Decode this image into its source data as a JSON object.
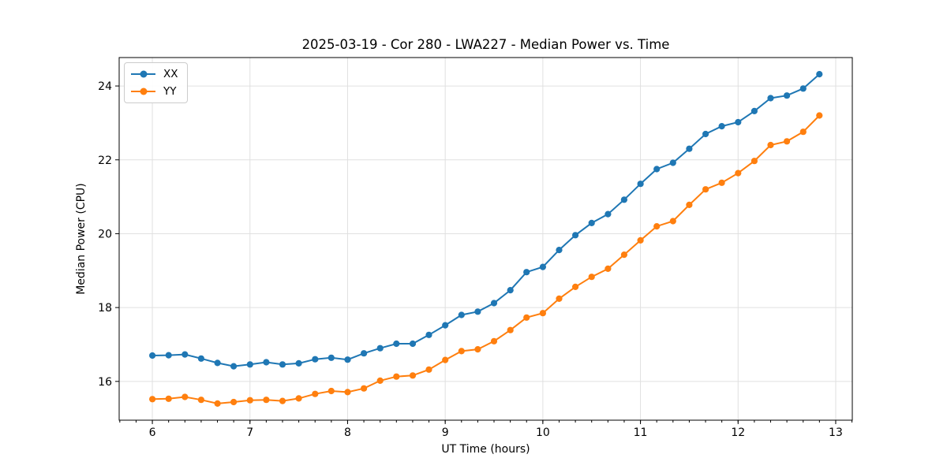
{
  "chart_data": {
    "type": "line",
    "title": "2025-03-19 - Cor 280 - LWA227 - Median Power vs. Time",
    "xlabel": "UT Time (hours)",
    "ylabel": "Median Power (CPU)",
    "legend_position": "upper left",
    "grid": true,
    "marker": "circle",
    "xlim": [
      5.66,
      13.17
    ],
    "ylim": [
      14.95,
      24.77
    ],
    "x_major_ticks": [
      6,
      7,
      8,
      9,
      10,
      11,
      12,
      13
    ],
    "x_tick_labels": [
      "6",
      "7",
      "8",
      "9",
      "10",
      "11",
      "12",
      "13"
    ],
    "x_minor_tick_step": 0.1666667,
    "y_major_ticks": [
      16,
      18,
      20,
      22,
      24
    ],
    "y_tick_labels": [
      "16",
      "18",
      "20",
      "22",
      "24"
    ],
    "grid_color": "#e0e0e0",
    "axis_color": "#000000",
    "x": [
      6.0,
      6.167,
      6.333,
      6.5,
      6.667,
      6.833,
      7.0,
      7.167,
      7.333,
      7.5,
      7.667,
      7.833,
      8.0,
      8.167,
      8.333,
      8.5,
      8.667,
      8.833,
      9.0,
      9.167,
      9.333,
      9.5,
      9.667,
      9.833,
      10.0,
      10.167,
      10.333,
      10.5,
      10.667,
      10.833,
      11.0,
      11.167,
      11.333,
      11.5,
      11.667,
      11.833,
      12.0,
      12.167,
      12.333,
      12.5,
      12.667,
      12.833
    ],
    "series": [
      {
        "name": "XX",
        "color": "#1f77b4",
        "values": [
          16.7,
          16.71,
          16.73,
          16.62,
          16.5,
          16.41,
          16.46,
          16.52,
          16.46,
          16.49,
          16.6,
          16.64,
          16.59,
          16.76,
          16.9,
          17.02,
          17.02,
          17.26,
          17.52,
          17.8,
          17.89,
          18.12,
          18.47,
          18.96,
          19.1,
          19.56,
          19.96,
          20.29,
          20.53,
          20.92,
          21.35,
          21.75,
          21.92,
          22.3,
          22.7,
          22.91,
          23.02,
          23.32,
          23.67,
          23.74,
          23.93,
          24.32
        ]
      },
      {
        "name": "YY",
        "color": "#ff7f0e",
        "values": [
          15.52,
          15.53,
          15.58,
          15.5,
          15.4,
          15.44,
          15.49,
          15.5,
          15.47,
          15.54,
          15.66,
          15.74,
          15.71,
          15.81,
          16.02,
          16.13,
          16.16,
          16.32,
          16.58,
          16.82,
          16.87,
          17.09,
          17.39,
          17.73,
          17.85,
          18.24,
          18.56,
          18.83,
          19.05,
          19.43,
          19.82,
          20.2,
          20.34,
          20.78,
          21.2,
          21.38,
          21.64,
          21.97,
          22.4,
          22.5,
          22.76,
          23.2
        ]
      }
    ]
  }
}
